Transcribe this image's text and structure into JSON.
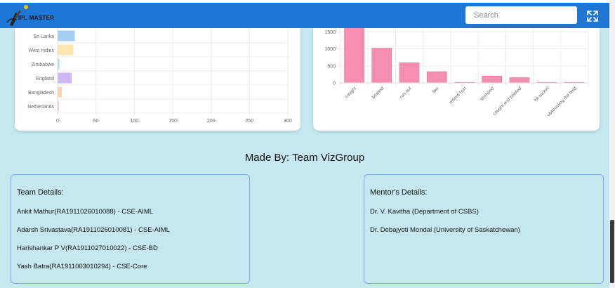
{
  "header": {
    "logo_text": "IPL MASTER",
    "search_placeholder": "Search",
    "expand_icon": "expand-arrows-icon",
    "bar_color": "#1e76d5"
  },
  "charts": [
    {
      "type": "bar",
      "orientation": "horizontal",
      "categories": [
        "Sri Lanka",
        "West Indies",
        "Zimbabwe",
        "England",
        "Bangladesh",
        "Netherlands"
      ],
      "values": [
        22,
        20,
        2,
        18,
        5,
        1
      ],
      "colors": [
        "#9ccbf2",
        "#fde3a8",
        "#a8dfe0",
        "#c9b1f5",
        "#fdd0a6",
        "#f7b2c4"
      ],
      "xticks": [
        0,
        50,
        100,
        150,
        200,
        250,
        300
      ],
      "xlim": [
        0,
        300
      ]
    },
    {
      "type": "bar",
      "categories": [
        "caught",
        "bowled",
        "run out",
        "lbw",
        "retired hurt",
        "stumped",
        "caught and bowled",
        "hit wicket",
        "obstructing the field"
      ],
      "values": [
        1650,
        1020,
        590,
        330,
        10,
        200,
        155,
        10,
        2
      ],
      "color": "#f48fb1",
      "yticks": [
        0,
        500,
        1000,
        1500
      ],
      "ylim": [
        0,
        1650
      ]
    }
  ],
  "footer": {
    "made_by": "Made By: Team VizGroup",
    "team": {
      "title": "Team Details:",
      "members": [
        "Ankit Mathur(RA1911026010088) - CSE-AIML",
        "Adarsh Srivastava(RA1911026010081) - CSE-AIML",
        "Harishankar P V(RA1911027010022) - CSE-BD",
        "Yash Batra(RA1911003010294) - CSE-Core"
      ]
    },
    "mentors": {
      "title": "Mentor's Details:",
      "members": [
        "Dr. V. Kavitha (Department of CSBS)",
        "Dr. Debajyoti Mondal (University of Saskatchewan)"
      ]
    }
  }
}
